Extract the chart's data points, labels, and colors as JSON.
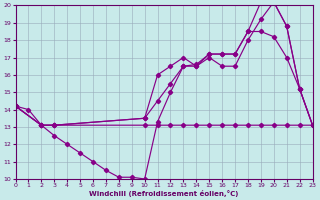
{
  "xlabel": "Windchill (Refroidissement éolien,°C)",
  "xlim": [
    0,
    23
  ],
  "ylim": [
    10,
    20
  ],
  "yticks": [
    10,
    11,
    12,
    13,
    14,
    15,
    16,
    17,
    18,
    19,
    20
  ],
  "xticks": [
    0,
    1,
    2,
    3,
    4,
    5,
    6,
    7,
    8,
    9,
    10,
    11,
    12,
    13,
    14,
    15,
    16,
    17,
    18,
    19,
    20,
    21,
    22,
    23
  ],
  "bg_color": "#c8eaea",
  "line_color": "#880088",
  "grid_color": "#99aabb",
  "line1_x": [
    0,
    1,
    2,
    3,
    10,
    11,
    12,
    13,
    14,
    15,
    16,
    17,
    18,
    19,
    20,
    21,
    22,
    23
  ],
  "line1_y": [
    14.2,
    14.0,
    13.1,
    13.1,
    13.1,
    13.1,
    13.1,
    13.1,
    13.1,
    13.1,
    13.1,
    13.1,
    13.1,
    13.1,
    13.1,
    13.1,
    13.1,
    13.1
  ],
  "line2_x": [
    0,
    2,
    3,
    4,
    5,
    6,
    7,
    8,
    9,
    10,
    11,
    12,
    13,
    14,
    15,
    16,
    17,
    18,
    19,
    20,
    21,
    22,
    23
  ],
  "line2_y": [
    14.2,
    13.1,
    12.5,
    12.0,
    11.5,
    11.0,
    10.5,
    10.1,
    10.1,
    10.0,
    13.3,
    15.0,
    16.5,
    16.5,
    17.0,
    16.5,
    16.5,
    18.0,
    19.2,
    20.2,
    18.8,
    15.2,
    13.1
  ],
  "line3_x": [
    0,
    2,
    3,
    10,
    11,
    12,
    13,
    14,
    15,
    16,
    17,
    18,
    19,
    20,
    21,
    22,
    23
  ],
  "line3_y": [
    14.2,
    13.1,
    13.1,
    13.5,
    14.5,
    15.5,
    16.5,
    16.6,
    17.2,
    17.2,
    17.2,
    18.5,
    18.5,
    18.2,
    17.0,
    15.2,
    13.1
  ],
  "line4_x": [
    0,
    2,
    3,
    10,
    11,
    12,
    13,
    14,
    15,
    16,
    17,
    18,
    19,
    20,
    21,
    22,
    23
  ],
  "line4_y": [
    14.2,
    13.1,
    13.1,
    13.5,
    16.0,
    16.5,
    17.0,
    16.5,
    17.2,
    17.2,
    17.2,
    18.5,
    20.2,
    20.2,
    18.8,
    15.2,
    13.1
  ]
}
